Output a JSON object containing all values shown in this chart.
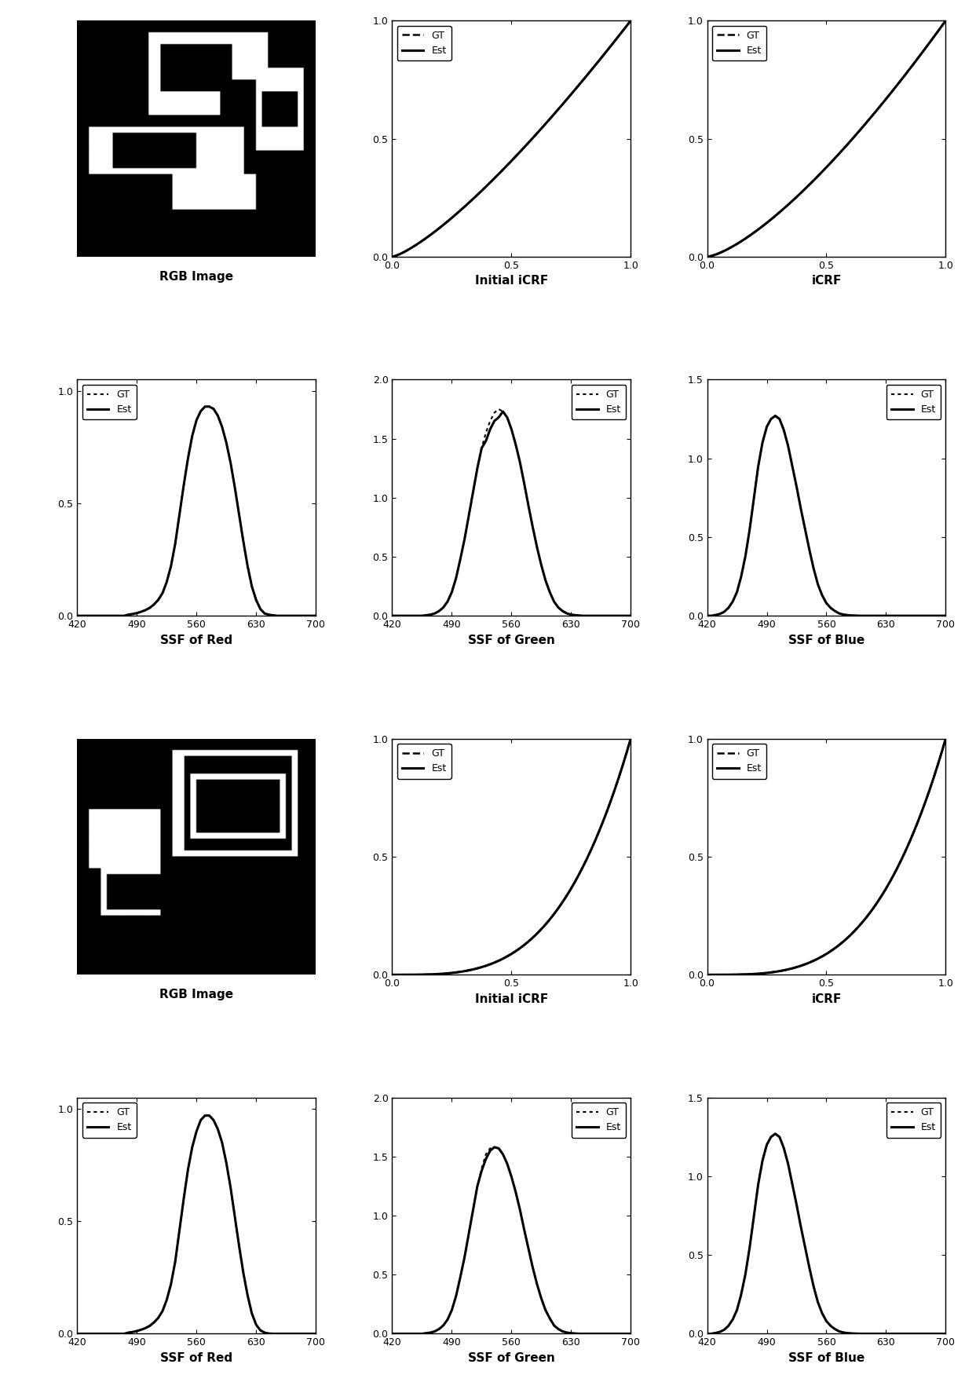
{
  "row1_img_label": "RGB Image",
  "row1_icrf1_label": "Initial iCRF",
  "row1_icrf2_label": "iCRF",
  "row2_labels": [
    "SSF of Red",
    "SSF of Green",
    "SSF of Blue"
  ],
  "row3_img_label": "RGB Image",
  "row3_icrf1_label": "Initial iCRF",
  "row3_icrf2_label": "iCRF",
  "row4_labels": [
    "SSF of Red",
    "SSF of Green",
    "SSF of Blue"
  ],
  "icrf1_power": 1.3,
  "icrf2_power": 1.4,
  "icrf3_power": 3.5,
  "icrf4_power": 3.5,
  "ssf_wavelengths": [
    420,
    425,
    430,
    435,
    440,
    445,
    450,
    455,
    460,
    465,
    470,
    475,
    480,
    485,
    490,
    495,
    500,
    505,
    510,
    515,
    520,
    525,
    530,
    535,
    540,
    545,
    550,
    555,
    560,
    565,
    570,
    575,
    580,
    585,
    590,
    595,
    600,
    605,
    610,
    615,
    620,
    625,
    630,
    635,
    640,
    645,
    650,
    655,
    660,
    665,
    670,
    675,
    680,
    685,
    690,
    695,
    700
  ],
  "ssf_red_gt": [
    0.0,
    0.0,
    0.0,
    0.0,
    0.0,
    0.0,
    0.0,
    0.0,
    0.0,
    0.0,
    0.0,
    0.0,
    0.005,
    0.008,
    0.012,
    0.018,
    0.025,
    0.035,
    0.05,
    0.07,
    0.1,
    0.15,
    0.22,
    0.32,
    0.45,
    0.58,
    0.7,
    0.8,
    0.87,
    0.91,
    0.93,
    0.93,
    0.92,
    0.89,
    0.84,
    0.77,
    0.68,
    0.57,
    0.45,
    0.33,
    0.22,
    0.13,
    0.07,
    0.03,
    0.01,
    0.005,
    0.002,
    0.0,
    0.0,
    0.0,
    0.0,
    0.0,
    0.0,
    0.0,
    0.0,
    0.0,
    0.0
  ],
  "ssf_red_est": [
    0.0,
    0.0,
    0.0,
    0.0,
    0.0,
    0.0,
    0.0,
    0.0,
    0.0,
    0.0,
    0.0,
    0.0,
    0.005,
    0.008,
    0.012,
    0.018,
    0.025,
    0.035,
    0.05,
    0.07,
    0.1,
    0.15,
    0.22,
    0.32,
    0.45,
    0.58,
    0.7,
    0.8,
    0.87,
    0.91,
    0.93,
    0.93,
    0.92,
    0.89,
    0.84,
    0.77,
    0.68,
    0.57,
    0.45,
    0.33,
    0.22,
    0.13,
    0.07,
    0.03,
    0.01,
    0.005,
    0.002,
    0.0,
    0.0,
    0.0,
    0.0,
    0.0,
    0.0,
    0.0,
    0.0,
    0.0,
    0.0
  ],
  "ssf_green_gt": [
    0.0,
    0.0,
    0.0,
    0.0,
    0.0,
    0.0,
    0.0,
    0.0,
    0.005,
    0.01,
    0.02,
    0.04,
    0.07,
    0.12,
    0.2,
    0.32,
    0.48,
    0.65,
    0.85,
    1.05,
    1.25,
    1.42,
    1.55,
    1.65,
    1.72,
    1.75,
    1.73,
    1.68,
    1.58,
    1.45,
    1.3,
    1.12,
    0.93,
    0.75,
    0.58,
    0.43,
    0.3,
    0.2,
    0.12,
    0.07,
    0.04,
    0.02,
    0.01,
    0.005,
    0.002,
    0.0,
    0.0,
    0.0,
    0.0,
    0.0,
    0.0,
    0.0,
    0.0,
    0.0,
    0.0,
    0.0,
    0.0
  ],
  "ssf_green_est": [
    0.0,
    0.0,
    0.0,
    0.0,
    0.0,
    0.0,
    0.0,
    0.0,
    0.005,
    0.01,
    0.02,
    0.04,
    0.07,
    0.12,
    0.2,
    0.32,
    0.48,
    0.65,
    0.85,
    1.05,
    1.25,
    1.42,
    1.48,
    1.58,
    1.65,
    1.68,
    1.73,
    1.68,
    1.58,
    1.45,
    1.3,
    1.12,
    0.93,
    0.75,
    0.58,
    0.43,
    0.3,
    0.2,
    0.12,
    0.07,
    0.04,
    0.02,
    0.01,
    0.005,
    0.002,
    0.0,
    0.0,
    0.0,
    0.0,
    0.0,
    0.0,
    0.0,
    0.0,
    0.0,
    0.0,
    0.0,
    0.0
  ],
  "ssf_blue_gt": [
    0.0,
    0.0,
    0.005,
    0.012,
    0.025,
    0.05,
    0.09,
    0.15,
    0.25,
    0.38,
    0.55,
    0.75,
    0.95,
    1.1,
    1.2,
    1.25,
    1.27,
    1.25,
    1.18,
    1.08,
    0.95,
    0.82,
    0.68,
    0.55,
    0.42,
    0.3,
    0.2,
    0.13,
    0.08,
    0.05,
    0.03,
    0.015,
    0.008,
    0.004,
    0.002,
    0.001,
    0.0,
    0.0,
    0.0,
    0.0,
    0.0,
    0.0,
    0.0,
    0.0,
    0.0,
    0.0,
    0.0,
    0.0,
    0.0,
    0.0,
    0.0,
    0.0,
    0.0,
    0.0,
    0.0,
    0.0,
    0.0
  ],
  "ssf_blue_est": [
    0.0,
    0.0,
    0.005,
    0.012,
    0.025,
    0.05,
    0.09,
    0.15,
    0.25,
    0.38,
    0.55,
    0.75,
    0.95,
    1.1,
    1.2,
    1.25,
    1.27,
    1.25,
    1.18,
    1.08,
    0.95,
    0.82,
    0.68,
    0.55,
    0.42,
    0.3,
    0.2,
    0.13,
    0.08,
    0.05,
    0.03,
    0.015,
    0.008,
    0.004,
    0.002,
    0.001,
    0.0,
    0.0,
    0.0,
    0.0,
    0.0,
    0.0,
    0.0,
    0.0,
    0.0,
    0.0,
    0.0,
    0.0,
    0.0,
    0.0,
    0.0,
    0.0,
    0.0,
    0.0,
    0.0,
    0.0,
    0.0
  ],
  "ssf_red2_gt": [
    0.0,
    0.0,
    0.0,
    0.0,
    0.0,
    0.0,
    0.0,
    0.0,
    0.0,
    0.0,
    0.0,
    0.0,
    0.005,
    0.008,
    0.012,
    0.018,
    0.025,
    0.035,
    0.05,
    0.07,
    0.1,
    0.15,
    0.22,
    0.32,
    0.46,
    0.6,
    0.73,
    0.83,
    0.9,
    0.95,
    0.97,
    0.97,
    0.95,
    0.91,
    0.85,
    0.76,
    0.65,
    0.52,
    0.39,
    0.27,
    0.17,
    0.09,
    0.04,
    0.015,
    0.005,
    0.001,
    0.0,
    0.0,
    0.0,
    0.0,
    0.0,
    0.0,
    0.0,
    0.0,
    0.0,
    0.0,
    0.0
  ],
  "ssf_red2_est": [
    0.0,
    0.0,
    0.0,
    0.0,
    0.0,
    0.0,
    0.0,
    0.0,
    0.0,
    0.0,
    0.0,
    0.0,
    0.005,
    0.008,
    0.012,
    0.018,
    0.025,
    0.035,
    0.05,
    0.07,
    0.1,
    0.15,
    0.22,
    0.32,
    0.46,
    0.6,
    0.73,
    0.83,
    0.9,
    0.95,
    0.97,
    0.97,
    0.95,
    0.91,
    0.85,
    0.76,
    0.65,
    0.52,
    0.39,
    0.27,
    0.17,
    0.09,
    0.04,
    0.015,
    0.005,
    0.001,
    0.0,
    0.0,
    0.0,
    0.0,
    0.0,
    0.0,
    0.0,
    0.0,
    0.0,
    0.0,
    0.0
  ],
  "ssf_green2_gt": [
    0.0,
    0.0,
    0.0,
    0.0,
    0.0,
    0.0,
    0.0,
    0.0,
    0.005,
    0.01,
    0.02,
    0.04,
    0.07,
    0.12,
    0.2,
    0.32,
    0.48,
    0.65,
    0.85,
    1.05,
    1.25,
    1.4,
    1.52,
    1.57,
    1.58,
    1.57,
    1.52,
    1.44,
    1.33,
    1.2,
    1.05,
    0.88,
    0.72,
    0.56,
    0.42,
    0.3,
    0.2,
    0.13,
    0.07,
    0.04,
    0.02,
    0.01,
    0.005,
    0.002,
    0.0,
    0.0,
    0.0,
    0.0,
    0.0,
    0.0,
    0.0,
    0.0,
    0.0,
    0.0,
    0.0,
    0.0,
    0.0
  ],
  "ssf_green2_est": [
    0.0,
    0.0,
    0.0,
    0.0,
    0.0,
    0.0,
    0.0,
    0.0,
    0.005,
    0.01,
    0.02,
    0.04,
    0.07,
    0.12,
    0.2,
    0.32,
    0.48,
    0.65,
    0.85,
    1.05,
    1.25,
    1.38,
    1.48,
    1.55,
    1.58,
    1.57,
    1.52,
    1.44,
    1.33,
    1.2,
    1.05,
    0.88,
    0.72,
    0.56,
    0.42,
    0.3,
    0.2,
    0.13,
    0.07,
    0.04,
    0.02,
    0.01,
    0.005,
    0.002,
    0.0,
    0.0,
    0.0,
    0.0,
    0.0,
    0.0,
    0.0,
    0.0,
    0.0,
    0.0,
    0.0,
    0.0,
    0.0
  ],
  "ssf_blue2_gt": [
    0.0,
    0.0,
    0.005,
    0.012,
    0.025,
    0.05,
    0.09,
    0.15,
    0.25,
    0.38,
    0.55,
    0.75,
    0.95,
    1.1,
    1.2,
    1.25,
    1.27,
    1.25,
    1.18,
    1.08,
    0.95,
    0.82,
    0.68,
    0.55,
    0.42,
    0.3,
    0.2,
    0.13,
    0.08,
    0.05,
    0.03,
    0.015,
    0.008,
    0.004,
    0.002,
    0.001,
    0.0,
    0.0,
    0.0,
    0.0,
    0.0,
    0.0,
    0.0,
    0.0,
    0.0,
    0.0,
    0.0,
    0.0,
    0.0,
    0.0,
    0.0,
    0.0,
    0.0,
    0.0,
    0.0,
    0.0,
    0.0
  ],
  "ssf_blue2_est": [
    0.0,
    0.0,
    0.005,
    0.012,
    0.025,
    0.05,
    0.09,
    0.15,
    0.25,
    0.38,
    0.55,
    0.75,
    0.95,
    1.1,
    1.2,
    1.25,
    1.27,
    1.25,
    1.18,
    1.08,
    0.95,
    0.82,
    0.68,
    0.55,
    0.42,
    0.3,
    0.2,
    0.13,
    0.08,
    0.05,
    0.03,
    0.015,
    0.008,
    0.004,
    0.002,
    0.001,
    0.0,
    0.0,
    0.0,
    0.0,
    0.0,
    0.0,
    0.0,
    0.0,
    0.0,
    0.0,
    0.0,
    0.0,
    0.0,
    0.0,
    0.0,
    0.0,
    0.0,
    0.0,
    0.0,
    0.0,
    0.0
  ],
  "ssf_xticks": [
    420,
    490,
    560,
    630,
    700
  ],
  "legend_gt_label": "GT",
  "legend_est_label": "Est",
  "title_fontsize": 11,
  "tick_fontsize": 9,
  "legend_fontsize": 9
}
